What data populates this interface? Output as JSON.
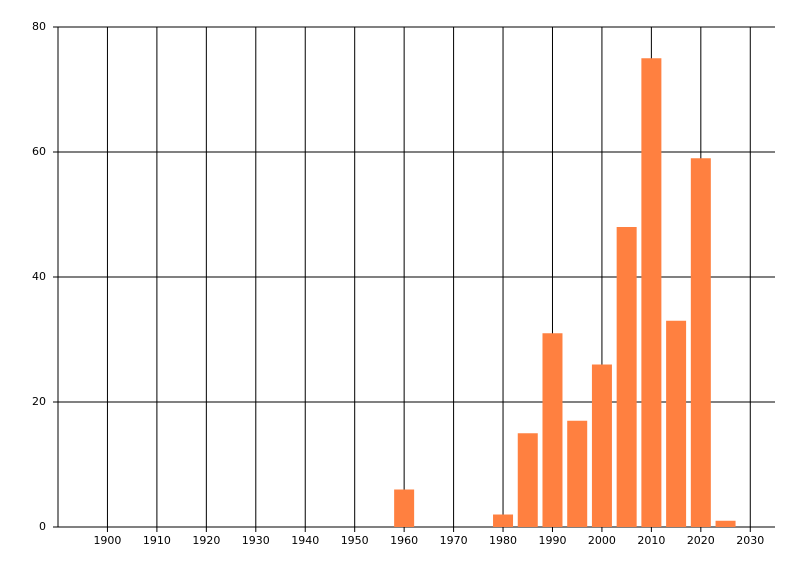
{
  "chart_data": {
    "type": "bar",
    "x": [
      1960,
      1980,
      1985,
      1990,
      1995,
      2000,
      2005,
      2010,
      2015,
      2020,
      2025
    ],
    "values": [
      6,
      2,
      15,
      31,
      17,
      26,
      48,
      75,
      33,
      59,
      1
    ],
    "color": "#ff8040",
    "xlim": [
      1890,
      2035
    ],
    "xticks": [
      1900,
      1910,
      1920,
      1930,
      1940,
      1950,
      1960,
      1970,
      1980,
      1990,
      2000,
      2010,
      2020,
      2030
    ],
    "ylim": [
      0,
      80
    ],
    "yticks": [
      0,
      20,
      40,
      60,
      80
    ],
    "grid": true
  }
}
